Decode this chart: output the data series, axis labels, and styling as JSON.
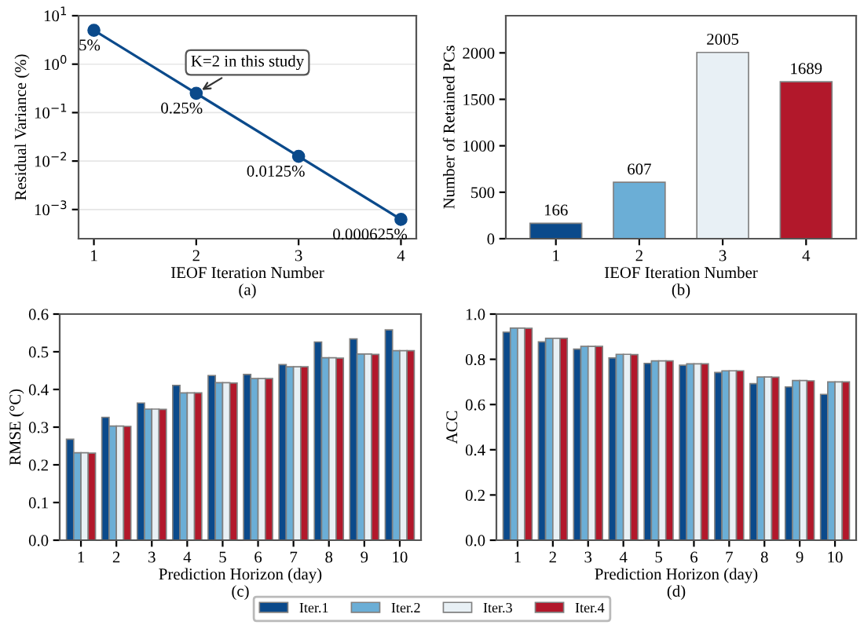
{
  "chart_data": [
    {
      "type": "line",
      "xlabel": "IEOF Iteration Number",
      "ylabel": "Residual Variance (%)",
      "log": "y",
      "x": [
        1,
        2,
        3,
        4
      ],
      "xlim": [
        0.85,
        4.15
      ],
      "xticks": [
        1,
        2,
        3,
        4
      ],
      "ylim": [
        0.00025,
        10
      ],
      "yticks": [
        {
          "value": 0.001,
          "label": "10$^{−3}$"
        },
        {
          "value": 0.01,
          "label": "10$^{−2}$"
        },
        {
          "value": 0.1,
          "label": "10$^{−1}$"
        },
        {
          "value": 1,
          "label": "10$^{0}$"
        },
        {
          "value": 10,
          "label": "10$^{1}$"
        }
      ],
      "grid": "y",
      "marker": "circle",
      "line_style": "solid",
      "series": [
        {
          "color": "#0b4a8b",
          "values": [
            5,
            0.25,
            0.0125,
            0.000625
          ],
          "value_labels": [
            "5%",
            "0.25%",
            "0.0125%",
            "0.000625%"
          ]
        }
      ],
      "annotations": [
        {
          "text": "K=2 in this study",
          "x": 2,
          "y": 0.25
        },
        "(a)"
      ]
    },
    {
      "type": "bar",
      "xlabel": "IEOF Iteration Number",
      "ylabel": "Number of Retained PCs",
      "categories": [
        "1",
        "2",
        "3",
        "4"
      ],
      "values": [
        166,
        607,
        2005,
        1689
      ],
      "colors": [
        "#0b4a8b",
        "#6baed6",
        "#e8f0f5",
        "#b2182b"
      ],
      "ylim": [
        0,
        2400
      ],
      "yticks": [
        0,
        500,
        1000,
        1500,
        2000
      ],
      "data_labels": true,
      "annotations": [
        "(b)"
      ]
    },
    {
      "type": "bar",
      "xlabel": "Prediction Horizon (day)",
      "ylabel": "RMSE (°C)",
      "categories": [
        "1",
        "2",
        "3",
        "4",
        "5",
        "6",
        "7",
        "8",
        "9",
        "10"
      ],
      "ylim": [
        0,
        0.6
      ],
      "yticks": [
        {
          "value": 0,
          "label": "0.0"
        },
        0.1,
        0.2,
        0.3,
        0.4,
        0.5,
        0.6
      ],
      "legend": "bottom",
      "series": [
        {
          "name": "Iter.1",
          "color": "#0b4a8b",
          "values": [
            0.268,
            0.326,
            0.364,
            0.411,
            0.437,
            0.44,
            0.466,
            0.526,
            0.534,
            0.558
          ]
        },
        {
          "name": "Iter.2",
          "color": "#6baed6",
          "values": [
            0.232,
            0.303,
            0.348,
            0.391,
            0.418,
            0.429,
            0.46,
            0.484,
            0.494,
            0.503
          ]
        },
        {
          "name": "Iter.3",
          "color": "#e8f0f5",
          "values": [
            0.232,
            0.303,
            0.348,
            0.391,
            0.418,
            0.429,
            0.46,
            0.484,
            0.494,
            0.503
          ]
        },
        {
          "name": "Iter.4",
          "color": "#b2182b",
          "values": [
            0.231,
            0.302,
            0.347,
            0.391,
            0.417,
            0.429,
            0.46,
            0.483,
            0.493,
            0.503
          ]
        }
      ],
      "annotations": [
        "(c)"
      ]
    },
    {
      "type": "bar",
      "xlabel": "Prediction Horizon (day)",
      "ylabel": "ACC",
      "categories": [
        "1",
        "2",
        "3",
        "4",
        "5",
        "6",
        "7",
        "8",
        "9",
        "10"
      ],
      "ylim": [
        0,
        1
      ],
      "yticks": [
        {
          "value": 0,
          "label": "0.0"
        },
        0.2,
        0.4,
        0.6,
        0.8,
        {
          "value": 1,
          "label": "1.0"
        }
      ],
      "legend": "bottom",
      "series": [
        {
          "name": "Iter.1",
          "color": "#0b4a8b",
          "values": [
            0.92,
            0.877,
            0.845,
            0.806,
            0.782,
            0.774,
            0.742,
            0.692,
            0.678,
            0.645
          ]
        },
        {
          "name": "Iter.2",
          "color": "#6baed6",
          "values": [
            0.938,
            0.893,
            0.857,
            0.822,
            0.793,
            0.78,
            0.749,
            0.722,
            0.706,
            0.7
          ]
        },
        {
          "name": "Iter.3",
          "color": "#e8f0f5",
          "values": [
            0.938,
            0.893,
            0.857,
            0.822,
            0.793,
            0.78,
            0.749,
            0.722,
            0.706,
            0.7
          ]
        },
        {
          "name": "Iter.4",
          "color": "#b2182b",
          "values": [
            0.937,
            0.893,
            0.857,
            0.821,
            0.793,
            0.78,
            0.749,
            0.721,
            0.705,
            0.7
          ]
        }
      ],
      "annotations": [
        "(d)"
      ]
    }
  ]
}
